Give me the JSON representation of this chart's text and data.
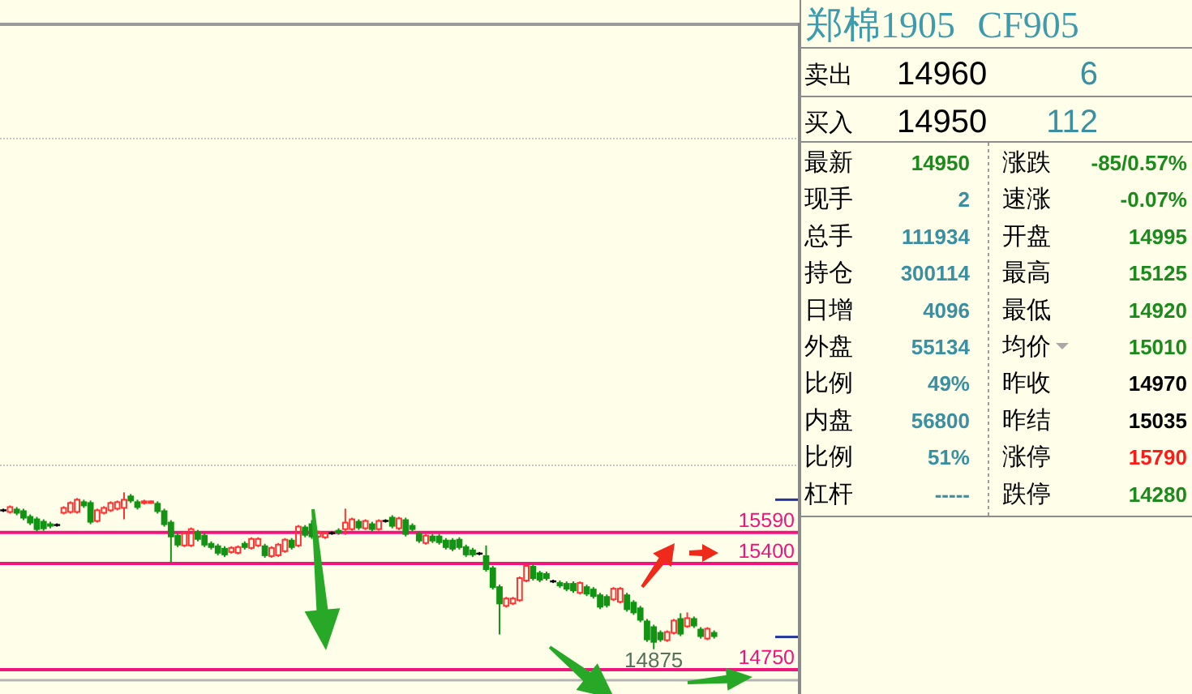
{
  "chart_data": [
    {
      "type": "candlestick",
      "categories": [
        null,
        null,
        null,
        null,
        null,
        null,
        null,
        null,
        null,
        null,
        null,
        null,
        null,
        null,
        null,
        null,
        null,
        null,
        null,
        null,
        null,
        null,
        null,
        null,
        null,
        null,
        null,
        null,
        null,
        null,
        null,
        null,
        null,
        null,
        null,
        null,
        null,
        null,
        null,
        null,
        null,
        null,
        null,
        null,
        null,
        null,
        null,
        null,
        null,
        null,
        null,
        null,
        null,
        null,
        null,
        null,
        null,
        null,
        null,
        null,
        null,
        null,
        null,
        null,
        null,
        null,
        null,
        null,
        null,
        null,
        null,
        null,
        null,
        null,
        null,
        null,
        null,
        null,
        null,
        null,
        null,
        null,
        null,
        null,
        null,
        null,
        null,
        null,
        null,
        null,
        null,
        null,
        null,
        null,
        null,
        null,
        null,
        null,
        null,
        null,
        null,
        null,
        null,
        null,
        null,
        null,
        null,
        null,
        null,
        null,
        null,
        null,
        null,
        null,
        null,
        null,
        null,
        null,
        null
      ],
      "ohlc": [
        [
          15725,
          15735,
          15715,
          15725
        ],
        [
          15715,
          15755,
          15705,
          15745
        ],
        [
          15735,
          15745,
          15695,
          15705
        ],
        [
          15725,
          15735,
          15665,
          15675
        ],
        [
          15690,
          15700,
          15635,
          15645
        ],
        [
          15675,
          15685,
          15595,
          15605
        ],
        [
          15660,
          15670,
          15600,
          15610
        ],
        [
          15645,
          15655,
          15615,
          15625
        ],
        [
          15635,
          15645,
          15625,
          15635
        ],
        [
          15710,
          15750,
          15700,
          15740
        ],
        [
          15715,
          15780,
          15705,
          15770
        ],
        [
          15715,
          15800,
          15705,
          15790
        ],
        [
          15780,
          15790,
          15740,
          15750
        ],
        [
          15775,
          15785,
          15640,
          15650
        ],
        [
          15660,
          15735,
          15650,
          15725
        ],
        [
          15710,
          15750,
          15700,
          15740
        ],
        [
          15725,
          15780,
          15715,
          15770
        ],
        [
          15735,
          15785,
          15725,
          15775
        ],
        [
          15740,
          15835,
          15670,
          15790
        ],
        [
          15815,
          15825,
          15770,
          15780
        ],
        [
          15780,
          15790,
          15730,
          15740
        ],
        [
          15770,
          15790,
          15760,
          15780
        ],
        [
          15770,
          15785,
          15765,
          15780
        ],
        [
          15770,
          15780,
          15705,
          15715
        ],
        [
          15725,
          15735,
          15625,
          15635
        ],
        [
          15655,
          15665,
          15405,
          15560
        ],
        [
          15575,
          15585,
          15500,
          15510
        ],
        [
          15510,
          15595,
          15500,
          15585
        ],
        [
          15510,
          15620,
          15500,
          15610
        ],
        [
          15595,
          15605,
          15535,
          15545
        ],
        [
          15575,
          15585,
          15500,
          15510
        ],
        [
          15525,
          15535,
          15485,
          15495
        ],
        [
          15510,
          15520,
          15450,
          15460
        ],
        [
          15495,
          15505,
          15440,
          15450
        ],
        [
          15470,
          15505,
          15460,
          15495
        ],
        [
          15465,
          15510,
          15455,
          15500
        ],
        [
          15525,
          15535,
          15485,
          15495
        ],
        [
          15495,
          15560,
          15485,
          15550
        ],
        [
          15510,
          15560,
          15500,
          15550
        ],
        [
          15510,
          15520,
          15435,
          15445
        ],
        [
          15445,
          15505,
          15435,
          15495
        ],
        [
          15450,
          15525,
          15440,
          15515
        ],
        [
          15475,
          15555,
          15465,
          15545
        ],
        [
          15545,
          15555,
          15485,
          15495
        ],
        [
          15510,
          15635,
          15500,
          15625
        ],
        [
          15625,
          15635,
          15560,
          15570
        ],
        [
          15645,
          15665,
          15550,
          15560
        ],
        [
          15565,
          15600,
          15555,
          15590
        ],
        [
          15560,
          15595,
          15550,
          15585
        ],
        [
          15585,
          15595,
          15575,
          15585
        ],
        [
          15605,
          15615,
          15575,
          15585
        ],
        [
          15610,
          15735,
          15575,
          15650
        ],
        [
          15610,
          15680,
          15600,
          15670
        ],
        [
          15660,
          15670,
          15605,
          15615
        ],
        [
          15615,
          15670,
          15605,
          15660
        ],
        [
          15645,
          15655,
          15595,
          15605
        ],
        [
          15610,
          15670,
          15600,
          15660
        ],
        [
          15660,
          15670,
          15650,
          15660
        ],
        [
          15685,
          15695,
          15615,
          15625
        ],
        [
          15615,
          15685,
          15605,
          15675
        ],
        [
          15670,
          15680,
          15565,
          15575
        ],
        [
          15635,
          15645,
          15595,
          15605
        ],
        [
          15585,
          15595,
          15525,
          15535
        ],
        [
          15525,
          15580,
          15515,
          15570
        ],
        [
          15570,
          15580,
          15525,
          15535
        ],
        [
          15570,
          15580,
          15515,
          15525
        ],
        [
          15545,
          15555,
          15485,
          15495
        ],
        [
          15545,
          15555,
          15475,
          15485
        ],
        [
          15550,
          15560,
          15485,
          15495
        ],
        [
          15505,
          15515,
          15440,
          15450
        ],
        [
          15485,
          15495,
          15440,
          15450
        ],
        [
          15460,
          15470,
          15450,
          15460
        ],
        [
          15450,
          15510,
          15350,
          15360
        ],
        [
          15375,
          15385,
          15240,
          15250
        ],
        [
          15260,
          15270,
          14965,
          15150
        ],
        [
          15140,
          15195,
          15130,
          15185
        ],
        [
          15155,
          15195,
          15145,
          15185
        ],
        [
          15175,
          15320,
          15165,
          15310
        ],
        [
          15295,
          15395,
          15285,
          15385
        ],
        [
          15385,
          15395,
          15295,
          15305
        ],
        [
          15345,
          15355,
          15285,
          15295
        ],
        [
          15340,
          15350,
          15295,
          15305
        ],
        [
          15290,
          15300,
          15280,
          15290
        ],
        [
          15285,
          15295,
          15250,
          15260
        ],
        [
          15280,
          15290,
          15230,
          15240
        ],
        [
          15280,
          15290,
          15220,
          15230
        ],
        [
          15220,
          15290,
          15210,
          15280
        ],
        [
          15260,
          15270,
          15200,
          15210
        ],
        [
          15245,
          15255,
          15185,
          15195
        ],
        [
          15210,
          15220,
          15120,
          15130
        ],
        [
          15200,
          15210,
          15130,
          15140
        ],
        [
          15180,
          15255,
          15170,
          15245
        ],
        [
          15165,
          15255,
          15155,
          15245
        ],
        [
          15210,
          15220,
          15105,
          15115
        ],
        [
          15165,
          15175,
          15085,
          15095
        ],
        [
          15130,
          15140,
          15040,
          15050
        ],
        [
          15050,
          15060,
          14920,
          14930
        ],
        [
          15015,
          15025,
          14875,
          14915
        ],
        [
          14980,
          14990,
          14920,
          14930
        ],
        [
          14930,
          14990,
          14920,
          14980
        ],
        [
          14975,
          15060,
          14965,
          15050
        ],
        [
          15065,
          15095,
          14955,
          14965
        ],
        [
          15015,
          15100,
          15005,
          15065
        ],
        [
          15065,
          15075,
          15005,
          15015
        ],
        [
          15000,
          15010,
          14940,
          14950
        ],
        [
          14940,
          15010,
          14930,
          15000
        ],
        [
          14980,
          14990,
          14940,
          14950
        ],
        null,
        null,
        null,
        null,
        null,
        null,
        null,
        null,
        null,
        null,
        null,
        null
      ],
      "colors": [
        "#000000",
        "#ff3333",
        "#139313",
        "#139313",
        "#139313",
        "#139313",
        "#139313",
        "#139313",
        "#000000",
        "#ff3333",
        "#ff3333",
        "#ff3333",
        "#139313",
        "#139313",
        "#ff3333",
        "#ff3333",
        "#ff3333",
        "#ff3333",
        "#ff3333",
        "#139313",
        "#139313",
        "#ff3333",
        "#ff3333",
        "#139313",
        "#139313",
        "#139313",
        "#139313",
        "#ff3333",
        "#ff3333",
        "#139313",
        "#139313",
        "#139313",
        "#139313",
        "#139313",
        "#ff3333",
        "#ff3333",
        "#139313",
        "#ff3333",
        "#ff3333",
        "#139313",
        "#ff3333",
        "#ff3333",
        "#ff3333",
        "#139313",
        "#ff3333",
        "#139313",
        "#139313",
        "#ff3333",
        "#ff3333",
        "#000000",
        "#139313",
        "#ff3333",
        "#ff3333",
        "#139313",
        "#ff3333",
        "#139313",
        "#ff3333",
        "#000000",
        "#139313",
        "#ff3333",
        "#139313",
        "#139313",
        "#139313",
        "#ff3333",
        "#139313",
        "#139313",
        "#139313",
        "#139313",
        "#139313",
        "#139313",
        "#139313",
        "#000000",
        "#139313",
        "#139313",
        "#139313",
        "#ff3333",
        "#ff3333",
        "#ff3333",
        "#ff3333",
        "#139313",
        "#139313",
        "#139313",
        "#000000",
        "#139313",
        "#139313",
        "#139313",
        "#ff3333",
        "#139313",
        "#139313",
        "#139313",
        "#139313",
        "#ff3333",
        "#ff3333",
        "#139313",
        "#139313",
        "#139313",
        "#139313",
        "#139313",
        "#139313",
        "#ff3333",
        "#ff3333",
        "#139313",
        "#ff3333",
        "#139313",
        "#139313",
        "#ff3333",
        "#139313",
        null,
        null,
        null,
        null,
        null,
        null,
        null,
        null,
        null,
        null,
        null,
        null
      ],
      "ylim": [
        14690,
        18690
      ],
      "yticks": [
        14750,
        {
          "value": 14950,
          "label": null
        },
        15400,
        15590,
        {
          "value": 15790,
          "label": null
        }
      ],
      "ref_lines": [
        {
          "axis": "y",
          "value": 15590,
          "color": "#f0147c",
          "line_style": "solid"
        },
        {
          "axis": "y",
          "value": 15400,
          "color": "#f0147c",
          "line_style": "solid"
        },
        {
          "axis": "y",
          "value": 14750,
          "color": "#f0147c",
          "line_style": "solid"
        },
        {
          "axis": "y",
          "value": 16000,
          "color": "#c4c4c4",
          "line_style": "dotted"
        },
        {
          "axis": "y",
          "value": 18000,
          "color": "#c4c4c4",
          "line_style": "dotted"
        }
      ],
      "annotations": [
        "14875"
      ]
    },
    {
      "type": "other",
      "title": "郑棉1905 CF905",
      "annotations": [
        "卖出",
        "14960",
        "6",
        "买入",
        "14950",
        "112",
        "最新",
        "14950",
        "涨跌",
        "-85/0.57%",
        "现手",
        "2",
        "速涨",
        "-0.07%",
        "总手",
        "111934",
        "开盘",
        "14995",
        "持仓",
        "300114",
        "最高",
        "15125",
        "日增",
        "4096",
        "最低",
        "14920",
        "外盘",
        "55134",
        "均价",
        "15010",
        "比例",
        "49%",
        "昨收",
        "14970",
        "内盘",
        "56800",
        "昨结",
        "15035",
        "比例",
        "51%",
        "涨停",
        "15790",
        "杠杆",
        "-----",
        "跌停",
        "14280"
      ],
      "colors": [
        "#000000",
        "#000000",
        "#3a8fa0",
        "#000000",
        "#000000",
        "#3a8fa0",
        "#000000",
        "#1d8a1d",
        "#000000",
        "#1d8a1d",
        "#000000",
        "#3a8fa0",
        "#000000",
        "#1d8a1d",
        "#000000",
        "#3a8fa0",
        "#000000",
        "#1d8a1d",
        "#000000",
        "#3a8fa0",
        "#000000",
        "#1d8a1d",
        "#000000",
        "#3a8fa0",
        "#000000",
        "#1d8a1d",
        "#000000",
        "#3a8fa0",
        "#000000",
        "#1d8a1d",
        "#000000",
        "#3a8fa0",
        "#000000",
        "#000000",
        "#000000",
        "#3a8fa0",
        "#000000",
        "#000000",
        "#000000",
        "#3a8fa0",
        "#000000",
        "#ff1a1a",
        "#000000",
        "#3a8fa0",
        "#000000",
        "#1d8a1d"
      ]
    }
  ]
}
